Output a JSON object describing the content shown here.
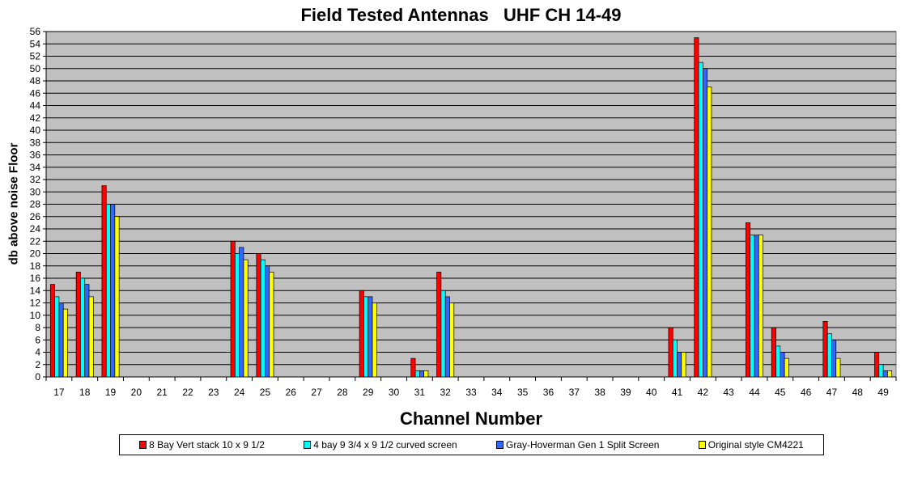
{
  "chart_data": {
    "type": "bar",
    "title": "Field Tested Antennas   UHF CH 14-49",
    "xlabel": "Channel Number",
    "ylabel": "db above noise Floor",
    "ylim": [
      0,
      56
    ],
    "ytick_step": 2,
    "grid": true,
    "legend_position": "bottom",
    "plot_background": "#c0c0c0",
    "categories": [
      "17",
      "18",
      "19",
      "20",
      "21",
      "22",
      "23",
      "24",
      "25",
      "26",
      "27",
      "28",
      "29",
      "30",
      "31",
      "32",
      "33",
      "34",
      "35",
      "36",
      "37",
      "38",
      "39",
      "40",
      "41",
      "42",
      "43",
      "44",
      "45",
      "46",
      "47",
      "48",
      "49"
    ],
    "series": [
      {
        "name": "8 Bay Vert stack 10 x 9 1/2",
        "color": "#ff0000",
        "values": [
          15,
          17,
          31,
          0,
          0,
          0,
          0,
          22,
          20,
          0,
          0,
          0,
          14,
          0,
          3,
          17,
          0,
          0,
          0,
          0,
          0,
          0,
          0,
          0,
          8,
          55,
          0,
          25,
          8,
          0,
          9,
          0,
          4
        ]
      },
      {
        "name": "4 bay 9 3/4 x 9 1/2 curved screen",
        "color": "#00ffff",
        "values": [
          13,
          16,
          28,
          0,
          0,
          0,
          0,
          20,
          19,
          0,
          0,
          0,
          13,
          0,
          1,
          14,
          0,
          0,
          0,
          0,
          0,
          0,
          0,
          0,
          6,
          51,
          0,
          23,
          5,
          0,
          7,
          0,
          2
        ]
      },
      {
        "name": "Gray-Hoverman Gen 1 Split Screen",
        "color": "#3366ff",
        "values": [
          12,
          15,
          28,
          0,
          0,
          0,
          0,
          21,
          18,
          0,
          0,
          0,
          13,
          0,
          1,
          13,
          0,
          0,
          0,
          0,
          0,
          0,
          0,
          0,
          4,
          50,
          0,
          23,
          4,
          0,
          6,
          0,
          1
        ]
      },
      {
        "name": "Original style CM4221",
        "color": "#ffff00",
        "values": [
          11,
          13,
          26,
          0,
          0,
          0,
          0,
          19,
          17,
          0,
          0,
          0,
          12,
          0,
          1,
          12,
          0,
          0,
          0,
          0,
          0,
          0,
          0,
          0,
          4,
          47,
          0,
          23,
          3,
          0,
          3,
          0,
          1
        ]
      }
    ]
  }
}
